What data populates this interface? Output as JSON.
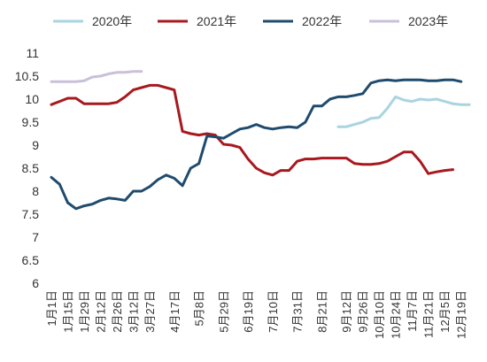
{
  "chart_data": {
    "type": "line",
    "title": "",
    "xlabel": "",
    "ylabel": "",
    "ylim": [
      6,
      11
    ],
    "yticks": [
      "6",
      "6.5",
      "7",
      "7.5",
      "8",
      "8.5",
      "9",
      "9.5",
      "10",
      "10.5",
      "11"
    ],
    "grid": false,
    "legend_position": "top",
    "x_tick_labels": [
      "1月1日",
      "1月15日",
      "1月29日",
      "2月12日",
      "2月26日",
      "3月12日",
      "3月27日",
      "4月17日",
      "5月8日",
      "5月29日",
      "6月19日",
      "7月10日",
      "7月31日",
      "8月21日",
      "9月12日",
      "9月26日",
      "10月10日",
      "10月24日",
      "11月7日",
      "11月21日",
      "12月5日",
      "12月19日"
    ],
    "x_tick_positions": [
      1,
      3,
      5,
      7,
      9,
      11,
      13,
      16,
      19,
      22,
      25,
      28,
      31,
      34,
      37,
      39,
      41,
      43,
      45,
      47,
      49,
      51
    ],
    "x_count": 52,
    "series": [
      {
        "name": "2020年",
        "color": "#a9d4e0",
        "points": [
          [
            36,
            9.4
          ],
          [
            37,
            9.4
          ],
          [
            38,
            9.45
          ],
          [
            39,
            9.5
          ],
          [
            40,
            9.58
          ],
          [
            41,
            9.6
          ],
          [
            42,
            9.8
          ],
          [
            43,
            10.05
          ],
          [
            44,
            9.98
          ],
          [
            45,
            9.95
          ],
          [
            46,
            10.0
          ],
          [
            47,
            9.98
          ],
          [
            48,
            10.0
          ],
          [
            49,
            9.95
          ],
          [
            50,
            9.9
          ],
          [
            51,
            9.88
          ],
          [
            52,
            9.88
          ]
        ]
      },
      {
        "name": "2021年",
        "color": "#a8191f",
        "points": [
          [
            1,
            9.88
          ],
          [
            2,
            9.95
          ],
          [
            3,
            10.02
          ],
          [
            4,
            10.02
          ],
          [
            5,
            9.9
          ],
          [
            6,
            9.9
          ],
          [
            7,
            9.9
          ],
          [
            8,
            9.9
          ],
          [
            9,
            9.93
          ],
          [
            10,
            10.05
          ],
          [
            11,
            10.2
          ],
          [
            12,
            10.25
          ],
          [
            13,
            10.3
          ],
          [
            14,
            10.3
          ],
          [
            15,
            10.25
          ],
          [
            16,
            10.2
          ],
          [
            17,
            9.3
          ],
          [
            18,
            9.25
          ],
          [
            19,
            9.22
          ],
          [
            20,
            9.25
          ],
          [
            21,
            9.22
          ],
          [
            22,
            9.02
          ],
          [
            23,
            9.0
          ],
          [
            24,
            8.95
          ],
          [
            25,
            8.7
          ],
          [
            26,
            8.5
          ],
          [
            27,
            8.4
          ],
          [
            28,
            8.35
          ],
          [
            29,
            8.45
          ],
          [
            30,
            8.45
          ],
          [
            31,
            8.65
          ],
          [
            32,
            8.7
          ],
          [
            33,
            8.7
          ],
          [
            34,
            8.72
          ],
          [
            35,
            8.72
          ],
          [
            36,
            8.72
          ],
          [
            37,
            8.72
          ],
          [
            38,
            8.6
          ],
          [
            39,
            8.58
          ],
          [
            40,
            8.58
          ],
          [
            41,
            8.6
          ],
          [
            42,
            8.65
          ],
          [
            43,
            8.75
          ],
          [
            44,
            8.85
          ],
          [
            45,
            8.85
          ],
          [
            46,
            8.65
          ],
          [
            47,
            8.38
          ],
          [
            48,
            8.42
          ],
          [
            49,
            8.45
          ],
          [
            50,
            8.47
          ]
        ]
      },
      {
        "name": "2022年",
        "color": "#1f4b6e",
        "points": [
          [
            1,
            8.3
          ],
          [
            2,
            8.15
          ],
          [
            3,
            7.75
          ],
          [
            4,
            7.62
          ],
          [
            5,
            7.68
          ],
          [
            6,
            7.72
          ],
          [
            7,
            7.8
          ],
          [
            8,
            7.85
          ],
          [
            9,
            7.83
          ],
          [
            10,
            7.8
          ],
          [
            11,
            8.0
          ],
          [
            12,
            8.0
          ],
          [
            13,
            8.1
          ],
          [
            14,
            8.25
          ],
          [
            15,
            8.35
          ],
          [
            16,
            8.28
          ],
          [
            17,
            8.12
          ],
          [
            18,
            8.5
          ],
          [
            19,
            8.6
          ],
          [
            20,
            9.2
          ],
          [
            21,
            9.18
          ],
          [
            22,
            9.15
          ],
          [
            23,
            9.25
          ],
          [
            24,
            9.35
          ],
          [
            25,
            9.38
          ],
          [
            26,
            9.45
          ],
          [
            27,
            9.38
          ],
          [
            28,
            9.35
          ],
          [
            29,
            9.38
          ],
          [
            30,
            9.4
          ],
          [
            31,
            9.38
          ],
          [
            32,
            9.5
          ],
          [
            33,
            9.85
          ],
          [
            34,
            9.85
          ],
          [
            35,
            10.0
          ],
          [
            36,
            10.05
          ],
          [
            37,
            10.05
          ],
          [
            38,
            10.08
          ],
          [
            39,
            10.12
          ],
          [
            40,
            10.35
          ],
          [
            41,
            10.4
          ],
          [
            42,
            10.42
          ],
          [
            43,
            10.4
          ],
          [
            44,
            10.42
          ],
          [
            45,
            10.42
          ],
          [
            46,
            10.42
          ],
          [
            47,
            10.4
          ],
          [
            48,
            10.4
          ],
          [
            49,
            10.42
          ],
          [
            50,
            10.42
          ],
          [
            51,
            10.38
          ]
        ]
      },
      {
        "name": "2023年",
        "color": "#c9c0d9",
        "points": [
          [
            1,
            10.38
          ],
          [
            2,
            10.38
          ],
          [
            3,
            10.38
          ],
          [
            4,
            10.38
          ],
          [
            5,
            10.4
          ],
          [
            6,
            10.48
          ],
          [
            7,
            10.5
          ],
          [
            8,
            10.55
          ],
          [
            9,
            10.58
          ],
          [
            10,
            10.58
          ],
          [
            11,
            10.6
          ],
          [
            12,
            10.6
          ]
        ]
      }
    ]
  }
}
